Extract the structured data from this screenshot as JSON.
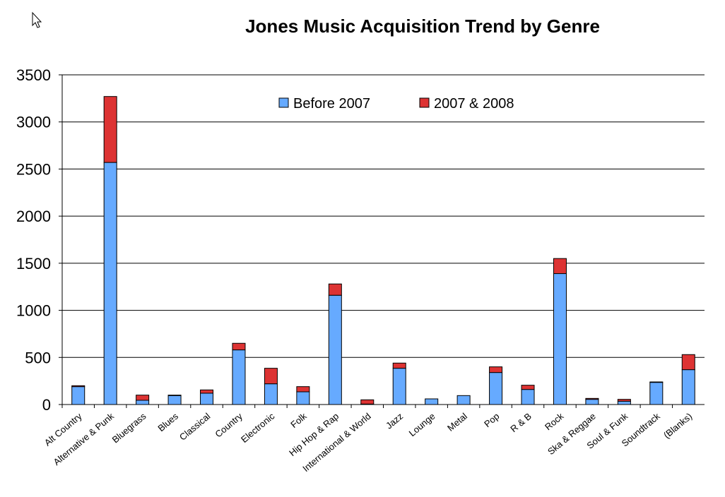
{
  "chart_data": {
    "type": "bar",
    "stacked": true,
    "title": "Jones Music Acquisition Trend by Genre",
    "xlabel": "",
    "ylabel": "",
    "ylim": [
      0,
      3500
    ],
    "yticks": [
      0,
      500,
      1000,
      1500,
      2000,
      2500,
      3000,
      3500
    ],
    "grid": true,
    "legend_position": "top-center",
    "categories": [
      "Alt Country",
      "Alternative & Punk",
      "Bluegrass",
      "Blues",
      "Classical",
      "Country",
      "Electronic",
      "Folk",
      "Hip Hop & Rap",
      "International & World",
      "Jazz",
      "Lounge",
      "Metal",
      "Pop",
      "R & B",
      "Rock",
      "Ska & Reggae",
      "Soul & Funk",
      "Soundtrack",
      "(Blanks)"
    ],
    "series": [
      {
        "name": "Before 2007",
        "color": "#66aaff",
        "values": [
          190,
          2570,
          45,
          95,
          120,
          580,
          220,
          135,
          1160,
          5,
          385,
          60,
          95,
          340,
          160,
          1390,
          55,
          35,
          235,
          370
        ]
      },
      {
        "name": "2007 & 2008",
        "color": "#dd3333",
        "values": [
          10,
          700,
          55,
          5,
          35,
          70,
          165,
          55,
          120,
          45,
          55,
          0,
          0,
          60,
          45,
          160,
          10,
          20,
          5,
          160
        ]
      }
    ]
  }
}
